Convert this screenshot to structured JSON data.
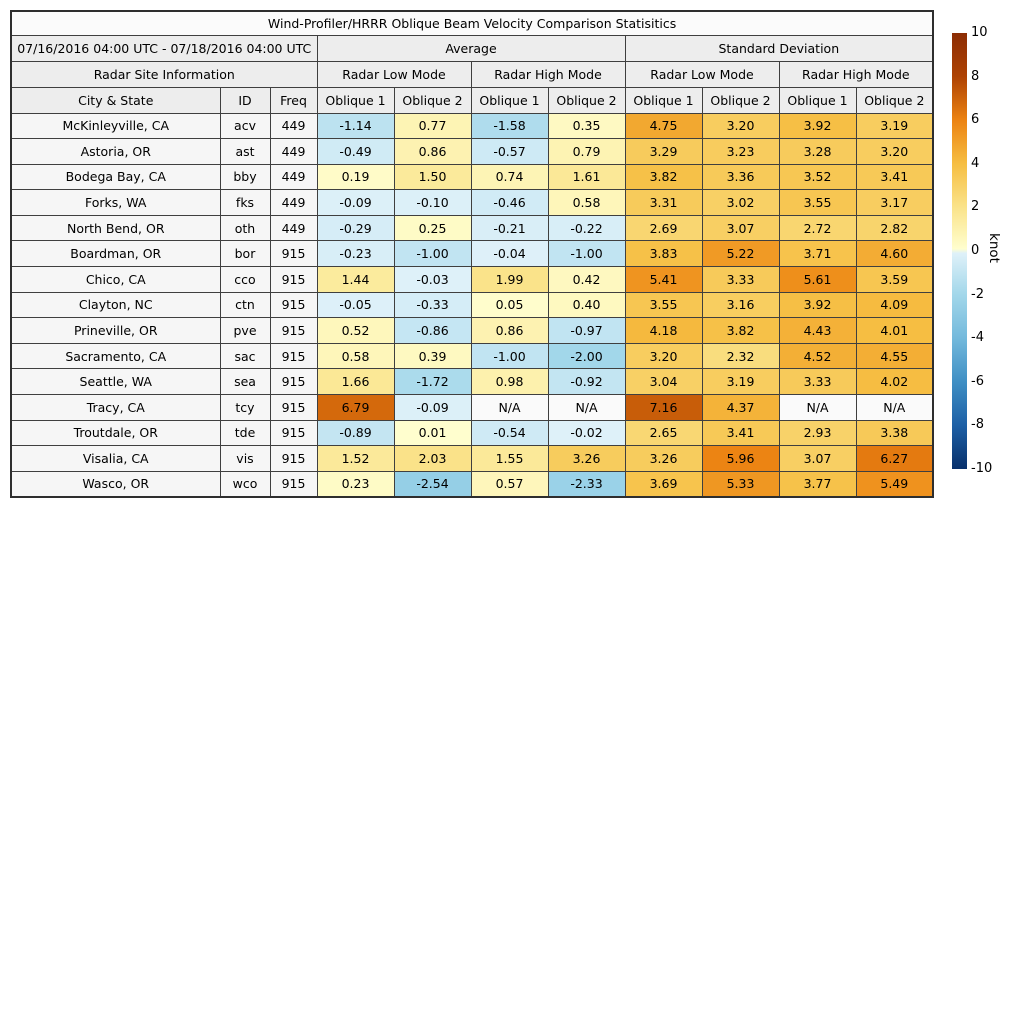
{
  "chart_data": {
    "type": "heatmap",
    "title": "Wind-Profiler/HRRR Oblique Beam Velocity Comparison Statisitics",
    "period": "07/16/2016 04:00 UTC - 07/18/2016 04:00 UTC",
    "group_headers": [
      "Average",
      "Standard Deviation"
    ],
    "section_headers": [
      "Radar Site Information",
      "Radar Low Mode",
      "Radar High Mode",
      "Radar Low Mode",
      "Radar High Mode"
    ],
    "column_headers": [
      "City & State",
      "ID",
      "Freq",
      "Oblique 1",
      "Oblique 2",
      "Oblique 1",
      "Oblique 2",
      "Oblique 1",
      "Oblique 2",
      "Oblique 1",
      "Oblique 2"
    ],
    "na_text": "N/A",
    "rows": [
      {
        "city": "McKinleyville, CA",
        "id": "acv",
        "freq": "449",
        "values": [
          -1.14,
          0.77,
          -1.58,
          0.35,
          4.75,
          3.2,
          3.92,
          3.19
        ]
      },
      {
        "city": "Astoria, OR",
        "id": "ast",
        "freq": "449",
        "values": [
          -0.49,
          0.86,
          -0.57,
          0.79,
          3.29,
          3.23,
          3.28,
          3.2
        ]
      },
      {
        "city": "Bodega Bay, CA",
        "id": "bby",
        "freq": "449",
        "values": [
          0.19,
          1.5,
          0.74,
          1.61,
          3.82,
          3.36,
          3.52,
          3.41
        ]
      },
      {
        "city": "Forks, WA",
        "id": "fks",
        "freq": "449",
        "values": [
          -0.09,
          -0.1,
          -0.46,
          0.58,
          3.31,
          3.02,
          3.55,
          3.17
        ]
      },
      {
        "city": "North Bend, OR",
        "id": "oth",
        "freq": "449",
        "values": [
          -0.29,
          0.25,
          -0.21,
          -0.22,
          2.69,
          3.07,
          2.72,
          2.82
        ]
      },
      {
        "city": "Boardman, OR",
        "id": "bor",
        "freq": "915",
        "values": [
          -0.23,
          -1.0,
          -0.04,
          -1.0,
          3.83,
          5.22,
          3.71,
          4.6
        ]
      },
      {
        "city": "Chico, CA",
        "id": "cco",
        "freq": "915",
        "values": [
          1.44,
          -0.03,
          1.99,
          0.42,
          5.41,
          3.33,
          5.61,
          3.59
        ]
      },
      {
        "city": "Clayton, NC",
        "id": "ctn",
        "freq": "915",
        "values": [
          -0.05,
          -0.33,
          0.05,
          0.4,
          3.55,
          3.16,
          3.92,
          4.09
        ]
      },
      {
        "city": "Prineville, OR",
        "id": "pve",
        "freq": "915",
        "values": [
          0.52,
          -0.86,
          0.86,
          -0.97,
          4.18,
          3.82,
          4.43,
          4.01
        ]
      },
      {
        "city": "Sacramento, CA",
        "id": "sac",
        "freq": "915",
        "values": [
          0.58,
          0.39,
          -1.0,
          -2.0,
          3.2,
          2.32,
          4.52,
          4.55
        ]
      },
      {
        "city": "Seattle, WA",
        "id": "sea",
        "freq": "915",
        "values": [
          1.66,
          -1.72,
          0.98,
          -0.92,
          3.04,
          3.19,
          3.33,
          4.02
        ]
      },
      {
        "city": "Tracy, CA",
        "id": "tcy",
        "freq": "915",
        "values": [
          6.79,
          -0.09,
          null,
          null,
          7.16,
          4.37,
          null,
          null
        ]
      },
      {
        "city": "Troutdale, OR",
        "id": "tde",
        "freq": "915",
        "values": [
          -0.89,
          0.01,
          -0.54,
          -0.02,
          2.65,
          3.41,
          2.93,
          3.38
        ]
      },
      {
        "city": "Visalia, CA",
        "id": "vis",
        "freq": "915",
        "values": [
          1.52,
          2.03,
          1.55,
          3.26,
          3.26,
          5.96,
          3.07,
          6.27
        ]
      },
      {
        "city": "Wasco, OR",
        "id": "wco",
        "freq": "915",
        "values": [
          0.23,
          -2.54,
          0.57,
          -2.33,
          3.69,
          5.33,
          3.77,
          5.49
        ]
      }
    ],
    "colorbar": {
      "label": "knot",
      "min": -10,
      "max": 10,
      "ticks": [
        10,
        8,
        6,
        4,
        2,
        0,
        -2,
        -4,
        -6,
        -8,
        -10
      ],
      "positive_stops": [
        [
          0,
          "#FFFECE"
        ],
        [
          2,
          "#FAE38A"
        ],
        [
          4,
          "#F6BE42"
        ],
        [
          6,
          "#EC8312"
        ],
        [
          8,
          "#AE4203"
        ],
        [
          10,
          "#8C2D04"
        ]
      ],
      "negative_stops": [
        [
          0,
          "#DFF1F9"
        ],
        [
          2,
          "#A2D7EA"
        ],
        [
          4,
          "#73B9DC"
        ],
        [
          6,
          "#3F8FC4"
        ],
        [
          8,
          "#1D60A6"
        ],
        [
          10,
          "#08306B"
        ]
      ],
      "na_bg": "#fafafa"
    }
  }
}
